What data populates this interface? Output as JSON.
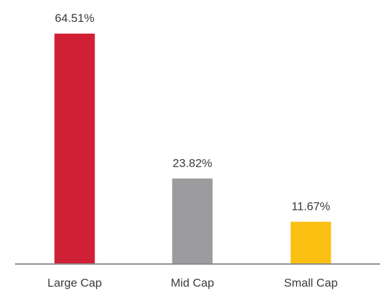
{
  "chart_data": {
    "type": "bar",
    "categories": [
      "Large Cap",
      "Mid Cap",
      "Small Cap"
    ],
    "values": [
      64.51,
      23.82,
      11.67
    ],
    "value_labels": [
      "64.51%",
      "23.82%",
      "11.67%"
    ],
    "colors": [
      "#cf2035",
      "#9b9b9d",
      "#f9bf11"
    ],
    "title": "",
    "xlabel": "",
    "ylabel": "",
    "ylim": [
      0,
      64.51
    ],
    "grid": false,
    "legend": "none"
  },
  "style": {
    "axis_color": "#8d8d8d",
    "label_color": "#3a3a3a",
    "background": "#ffffff"
  }
}
